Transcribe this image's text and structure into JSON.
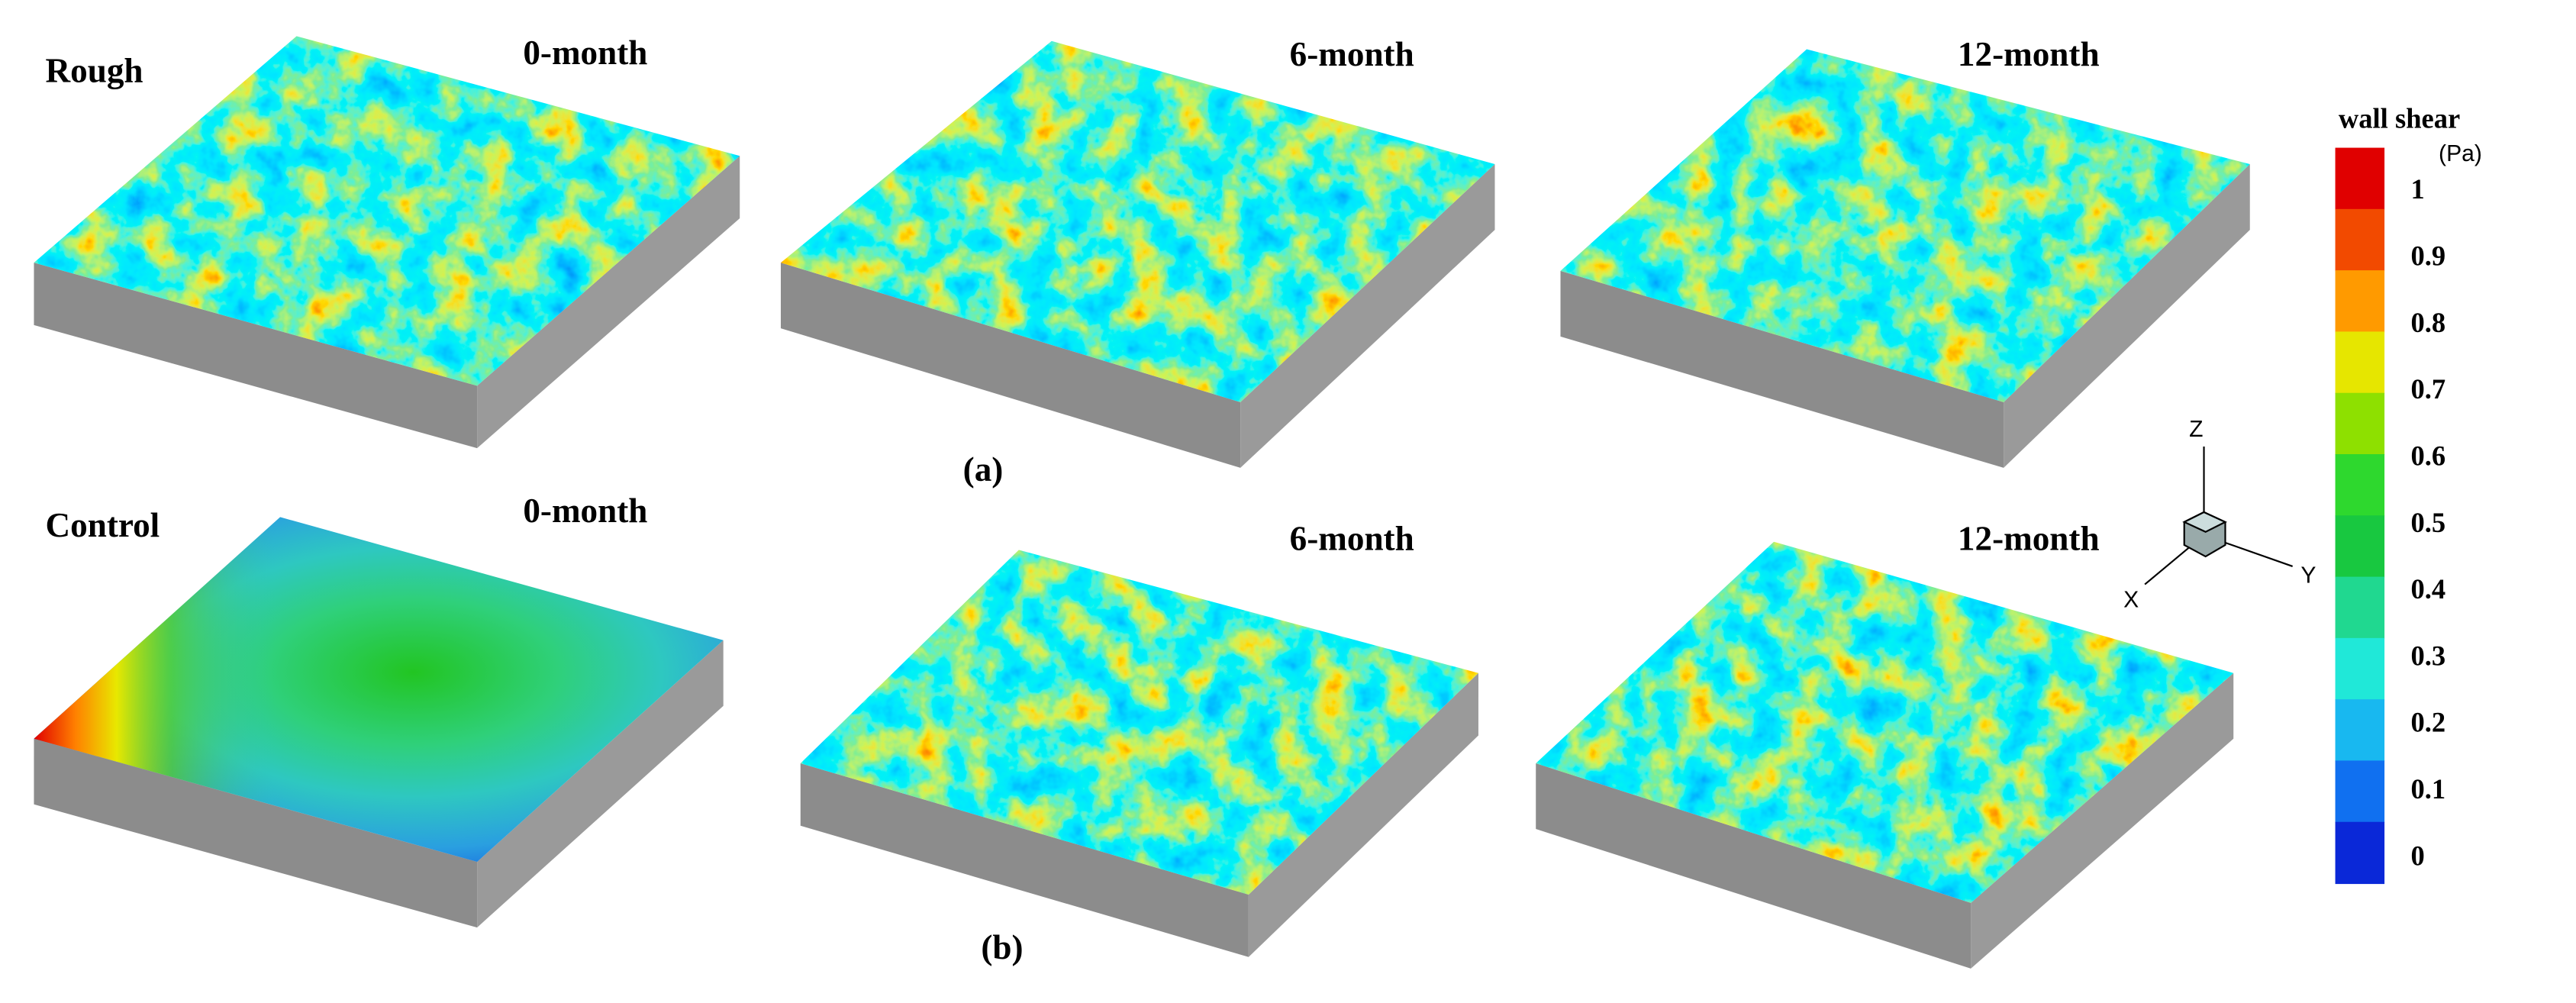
{
  "rows": [
    {
      "label": "Rough",
      "caption": "(a)",
      "panels": [
        "0-month",
        "6-month",
        "12-month"
      ]
    },
    {
      "label": "Control",
      "caption": "(b)",
      "panels": [
        "0-month",
        "6-month",
        "12-month"
      ]
    }
  ],
  "colorbar": {
    "title": "wall shear",
    "unit": "(Pa)",
    "ticks": [
      0,
      0.1,
      0.2,
      0.3,
      0.4,
      0.5,
      0.6,
      0.7,
      0.8,
      0.9,
      1
    ]
  },
  "axes": {
    "z": "Z",
    "y": "Y",
    "x": "X"
  }
}
